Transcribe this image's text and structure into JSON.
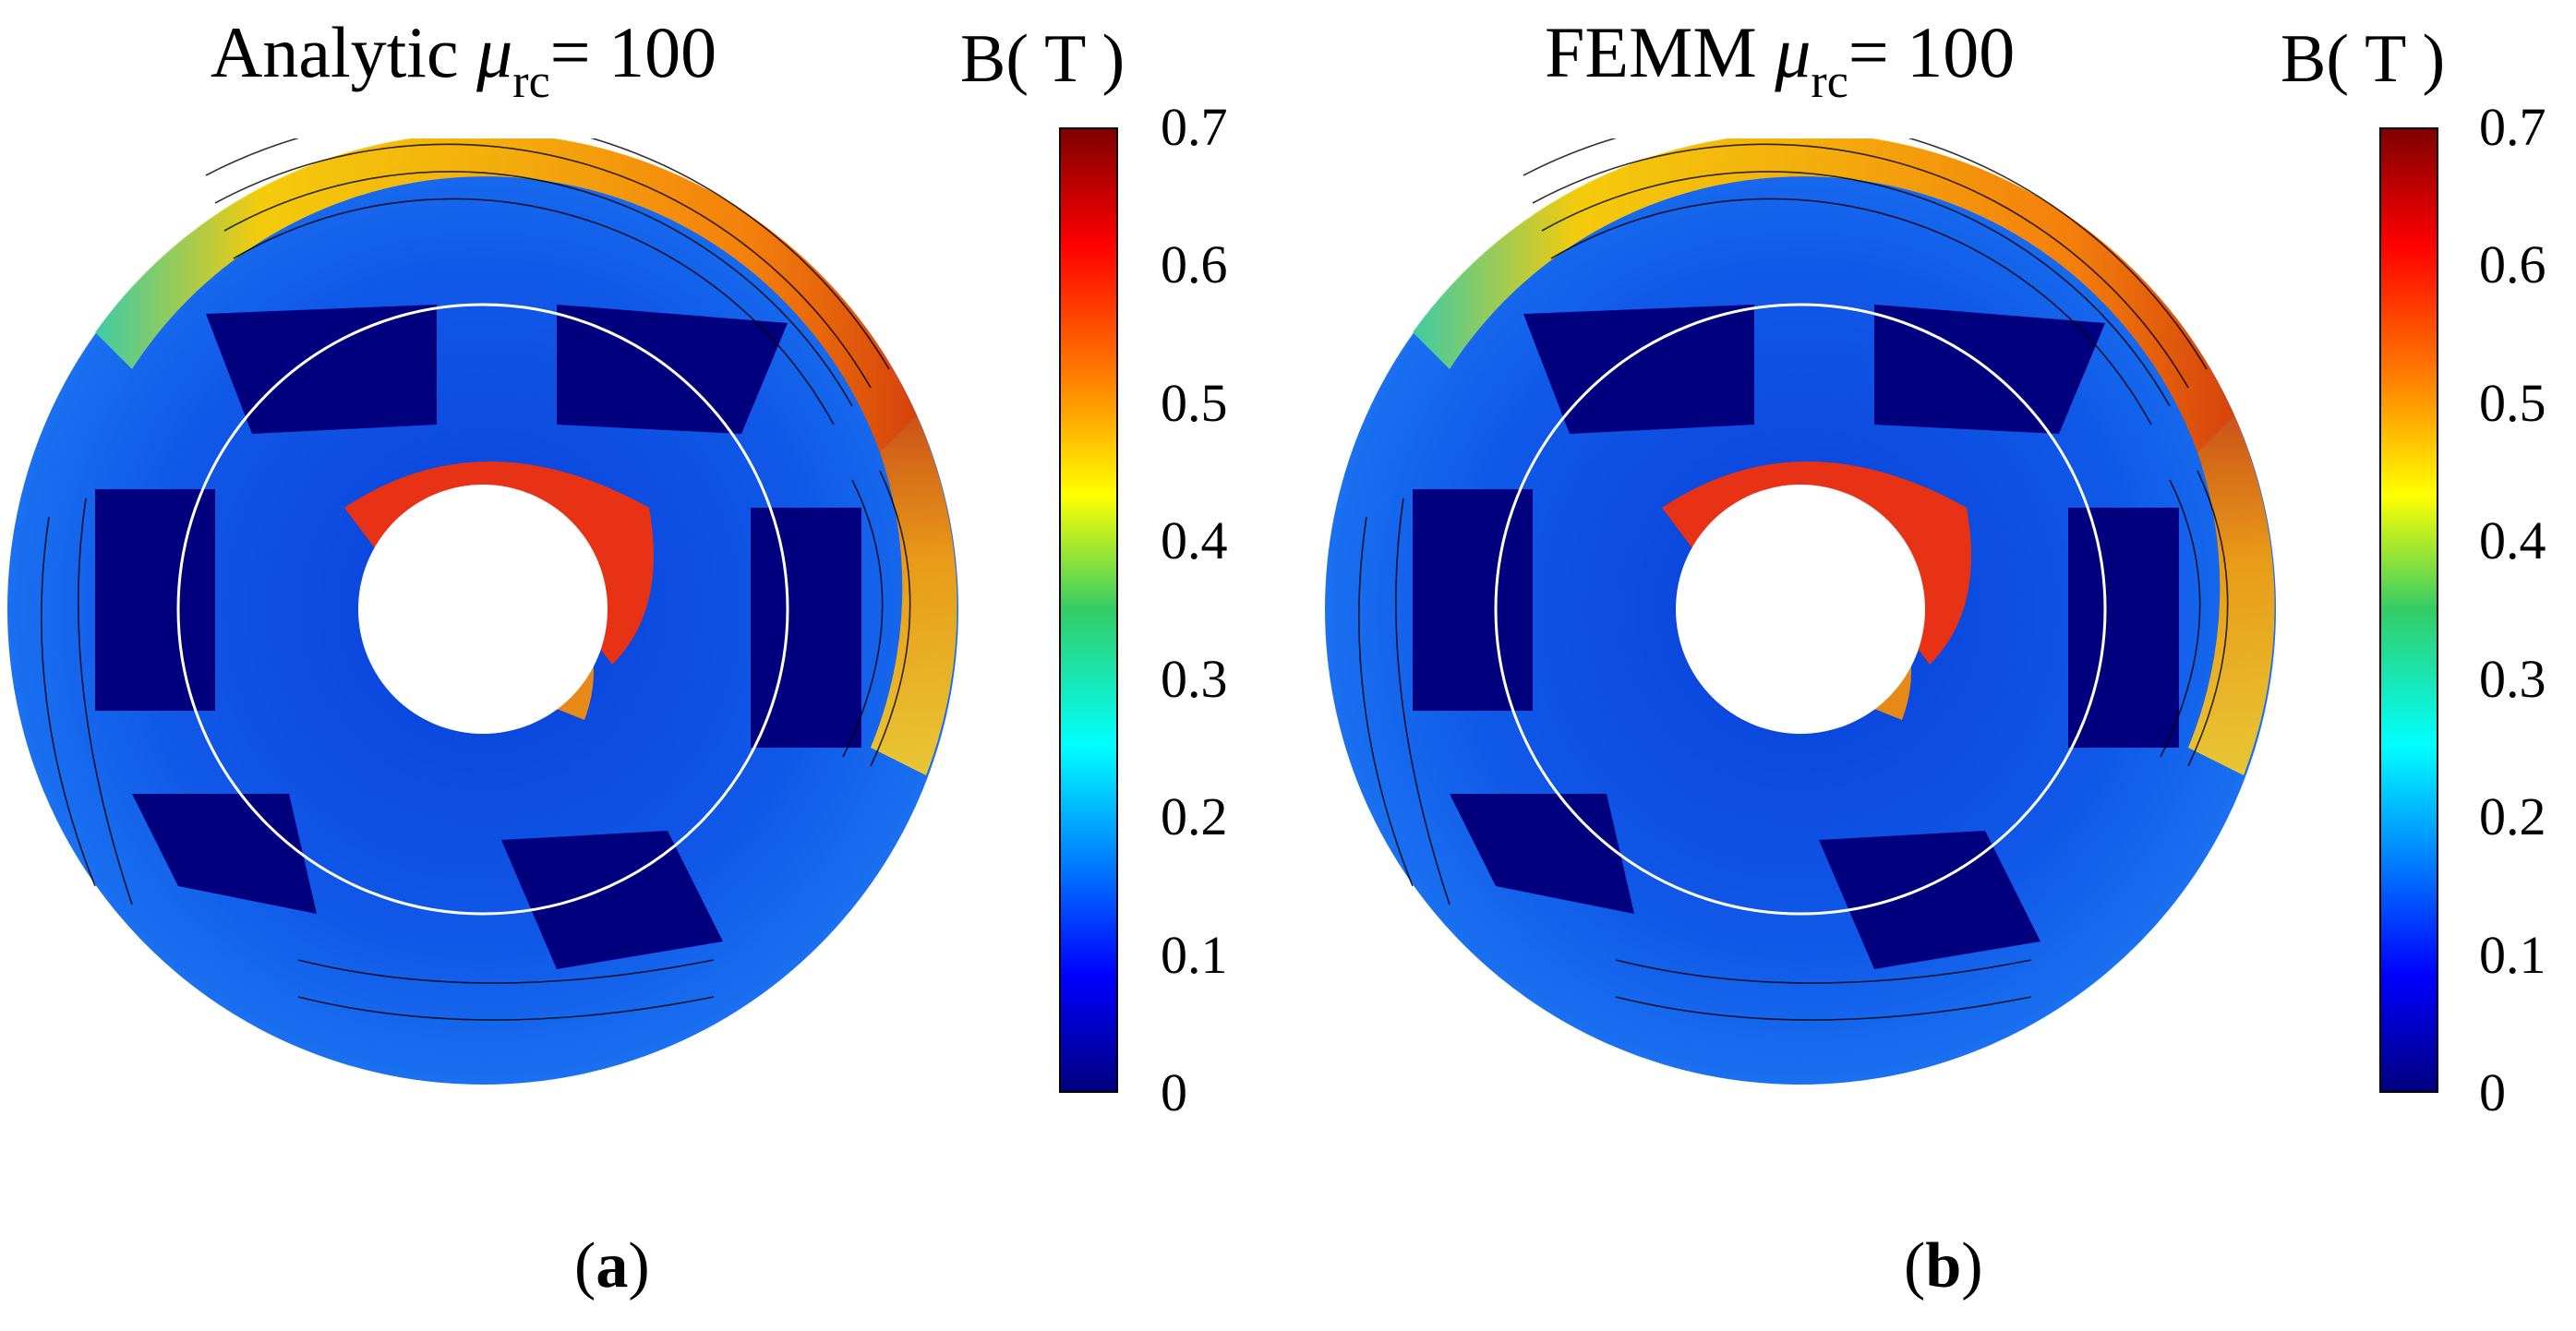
{
  "panels": [
    {
      "title_prefix": "Analytic ",
      "mu_symbol": "μ",
      "mu_subscript": "rc",
      "title_suffix": "= 100",
      "colorbar_label": "B( T )",
      "caption_open": "(",
      "caption_letter": "a",
      "caption_close": ")"
    },
    {
      "title_prefix": "FEMM ",
      "mu_symbol": "μ",
      "mu_subscript": "rc",
      "title_suffix": "= 100",
      "colorbar_label": "B( T )",
      "caption_open": "(",
      "caption_letter": "b",
      "caption_close": ")"
    }
  ],
  "colorbar": {
    "ticks": [
      "0",
      "0.1",
      "0.2",
      "0.3",
      "0.4",
      "0.5",
      "0.6",
      "0.7"
    ],
    "min": 0,
    "max": 0.7,
    "unit": "T"
  },
  "colors": {
    "dark_blue": "#00007f",
    "blue": "#0055ee",
    "cyan": "#00ffff",
    "green": "#33cc66",
    "yellow": "#ffff00",
    "orange": "#ff8000",
    "red": "#ff0000",
    "dark_red": "#800000"
  }
}
